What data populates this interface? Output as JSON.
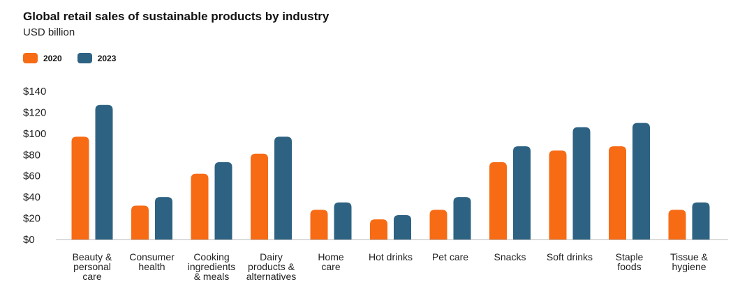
{
  "chart_data": {
    "type": "bar",
    "title": "Global retail sales of sustainable products by industry",
    "subtitle": "USD billion",
    "xlabel": "",
    "ylabel": "USD billion",
    "ylim": [
      0,
      140
    ],
    "yticks": [
      0,
      20,
      40,
      60,
      80,
      100,
      120,
      140
    ],
    "ytick_labels": [
      "$0",
      "$20",
      "$40",
      "$60",
      "$80",
      "$100",
      "$120",
      "$140"
    ],
    "legend_position": "top-left",
    "grid": false,
    "categories": [
      [
        "Beauty &",
        "personal",
        "care"
      ],
      [
        "Consumer",
        "health"
      ],
      [
        "Cooking",
        "ingredients",
        "& meals"
      ],
      [
        "Dairy",
        "products &",
        "alternatives"
      ],
      [
        "Home",
        "care"
      ],
      [
        "Hot drinks"
      ],
      [
        "Pet care"
      ],
      [
        "Snacks"
      ],
      [
        "Soft drinks"
      ],
      [
        "Staple",
        "foods"
      ],
      [
        "Tissue &",
        "hygiene"
      ]
    ],
    "series": [
      {
        "name": "2020",
        "color": "#F76B15",
        "values": [
          97,
          32,
          62,
          81,
          28,
          19,
          28,
          73,
          84,
          88,
          28
        ]
      },
      {
        "name": "2023",
        "color": "#2D6282",
        "values": [
          127,
          40,
          73,
          97,
          35,
          23,
          40,
          88,
          106,
          110,
          35
        ]
      }
    ]
  }
}
